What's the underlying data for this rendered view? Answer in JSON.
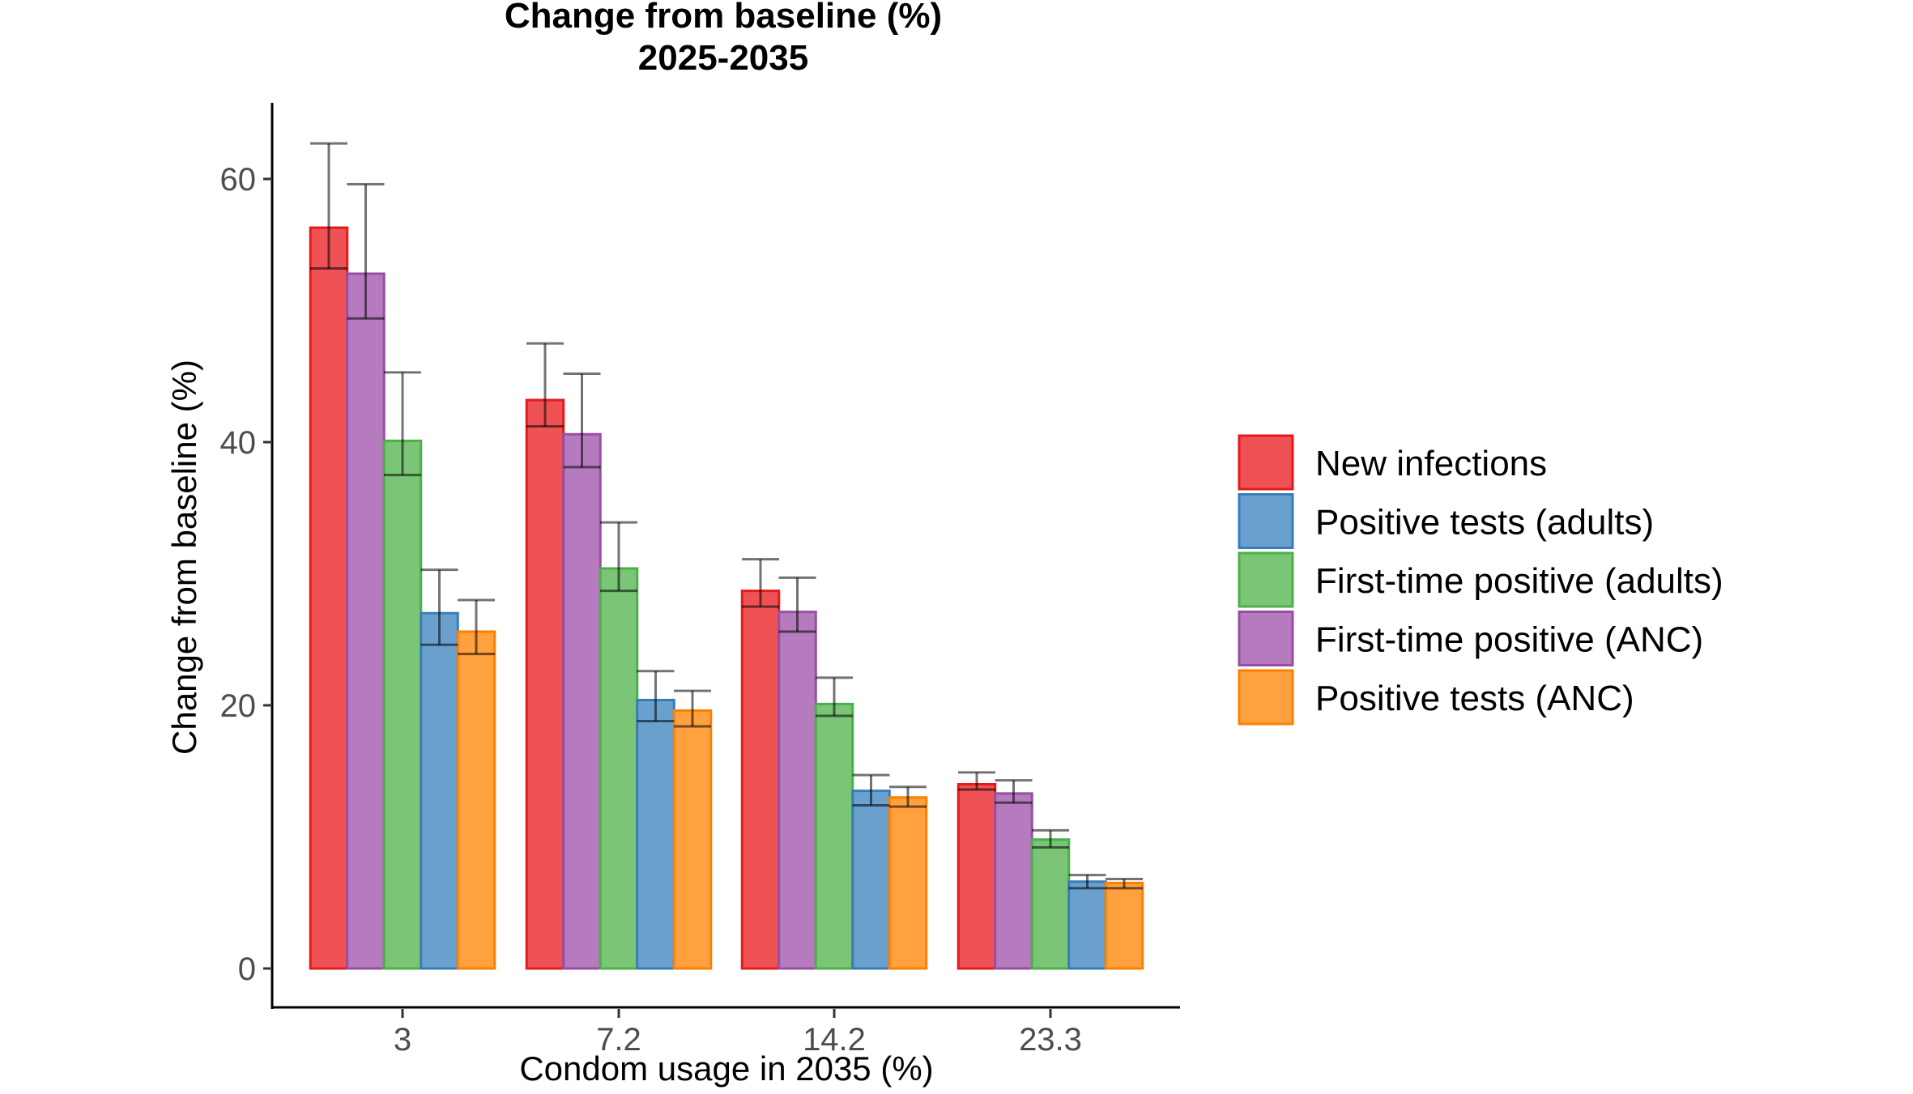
{
  "chart_data": {
    "type": "bar",
    "title": "Change from baseline (%)",
    "subtitle": "2025-2035",
    "xlabel": "Condom usage in 2035 (%)",
    "ylabel": "Change from baseline (%)",
    "ylim": [
      -4.5,
      66
    ],
    "yticks": [
      0,
      20,
      40,
      60
    ],
    "grid": false,
    "legend_position": "right",
    "categories": [
      "3",
      "7.2",
      "14.2",
      "23.3"
    ],
    "series": [
      {
        "name": "New infections",
        "fill": "#ef5254",
        "stroke": "#e41a1c",
        "values": [
          56.3,
          43.2,
          28.7,
          14.0
        ],
        "lower": [
          53.2,
          41.2,
          27.5,
          13.6
        ],
        "upper": [
          62.7,
          47.5,
          31.1,
          14.9
        ]
      },
      {
        "name": "First-time positive (ANC)",
        "fill": "#b57bbe",
        "stroke": "#984ea3",
        "values": [
          52.8,
          40.6,
          27.1,
          13.3
        ],
        "lower": [
          49.4,
          38.1,
          25.6,
          12.6
        ],
        "upper": [
          59.6,
          45.2,
          29.7,
          14.3
        ]
      },
      {
        "name": "First-time positive (adults)",
        "fill": "#7ac576",
        "stroke": "#4daf4a",
        "values": [
          40.1,
          30.4,
          20.1,
          9.8
        ],
        "lower": [
          37.5,
          28.7,
          19.2,
          9.2
        ],
        "upper": [
          45.3,
          33.9,
          22.1,
          10.5
        ]
      },
      {
        "name": "Positive tests (adults)",
        "fill": "#6aa0ce",
        "stroke": "#377eb8",
        "values": [
          27.0,
          20.4,
          13.5,
          6.6
        ],
        "lower": [
          24.6,
          18.8,
          12.4,
          6.1
        ],
        "upper": [
          30.3,
          22.6,
          14.7,
          7.1
        ]
      },
      {
        "name": "Positive tests (ANC)",
        "fill": "#ffa13f",
        "stroke": "#ff7f00",
        "values": [
          25.6,
          19.6,
          13.0,
          6.5
        ],
        "lower": [
          23.9,
          18.4,
          12.3,
          6.1
        ],
        "upper": [
          28.0,
          21.1,
          13.8,
          6.8
        ]
      }
    ],
    "legend_order": [
      "New infections",
      "Positive tests (adults)",
      "First-time positive (adults)",
      "First-time positive (ANC)",
      "Positive tests (ANC)"
    ]
  }
}
